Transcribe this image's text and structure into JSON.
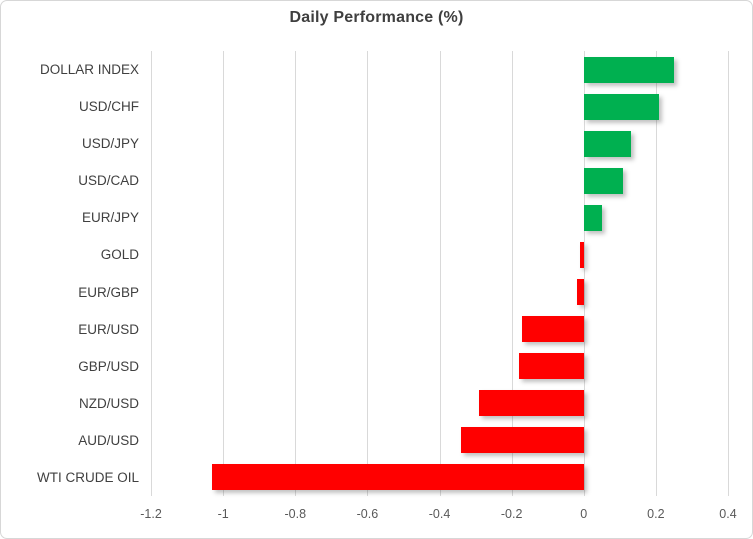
{
  "chart_data": {
    "type": "bar",
    "orientation": "horizontal",
    "title": "Daily Performance (%)",
    "categories": [
      "DOLLAR INDEX",
      "USD/CHF",
      "USD/JPY",
      "USD/CAD",
      "EUR/JPY",
      "GOLD",
      "EUR/GBP",
      "EUR/USD",
      "GBP/USD",
      "NZD/USD",
      "AUD/USD",
      "WTI CRUDE OIL"
    ],
    "values": [
      0.25,
      0.21,
      0.13,
      0.11,
      0.05,
      -0.01,
      -0.02,
      -0.17,
      -0.18,
      -0.29,
      -0.34,
      -1.03
    ],
    "xlim": [
      -1.2,
      0.4
    ],
    "xticks": [
      {
        "value": -1.2,
        "label": "-1.2"
      },
      {
        "value": -1.0,
        "label": "-1"
      },
      {
        "value": -0.8,
        "label": "-0.8"
      },
      {
        "value": -0.6,
        "label": "-0.6"
      },
      {
        "value": -0.4,
        "label": "-0.4"
      },
      {
        "value": -0.2,
        "label": "-0.2"
      },
      {
        "value": 0.0,
        "label": "0"
      },
      {
        "value": 0.2,
        "label": "0.2"
      },
      {
        "value": 0.4,
        "label": "0.4"
      }
    ],
    "grid": "vertical",
    "legend": "none",
    "colors": {
      "positive": "#00b050",
      "negative": "#ff0000",
      "gridline": "#d9d9d9",
      "title_text": "#3f3f3f",
      "category_text": "#404040",
      "tick_text": "#595959"
    }
  }
}
